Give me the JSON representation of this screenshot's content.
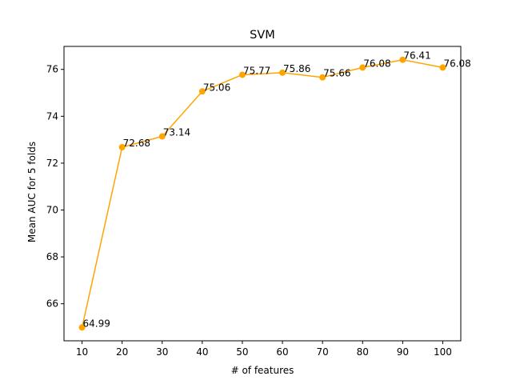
{
  "chart_data": {
    "type": "line",
    "title": "SVM",
    "xlabel": "# of features",
    "ylabel": "Mean AUC for 5 folds",
    "x": [
      10,
      20,
      30,
      40,
      50,
      60,
      70,
      80,
      90,
      100
    ],
    "series": [
      {
        "values": [
          64.99,
          72.68,
          73.14,
          75.06,
          75.77,
          75.86,
          75.66,
          76.08,
          76.41,
          76.08
        ],
        "labels": [
          "64.99",
          "72.68",
          "73.14",
          "75.06",
          "75.77",
          "75.86",
          "75.66",
          "76.08",
          "76.41",
          "76.08"
        ],
        "color": "#ffa500"
      }
    ],
    "xticks": [
      "10",
      "20",
      "30",
      "40",
      "50",
      "60",
      "70",
      "80",
      "90",
      "100"
    ],
    "yticks": [
      "66",
      "68",
      "70",
      "72",
      "74",
      "76"
    ],
    "xlim": [
      5.5,
      104.5
    ],
    "ylim": [
      64.419,
      76.981
    ],
    "grid": false,
    "legend": "none",
    "marker": "circle"
  }
}
